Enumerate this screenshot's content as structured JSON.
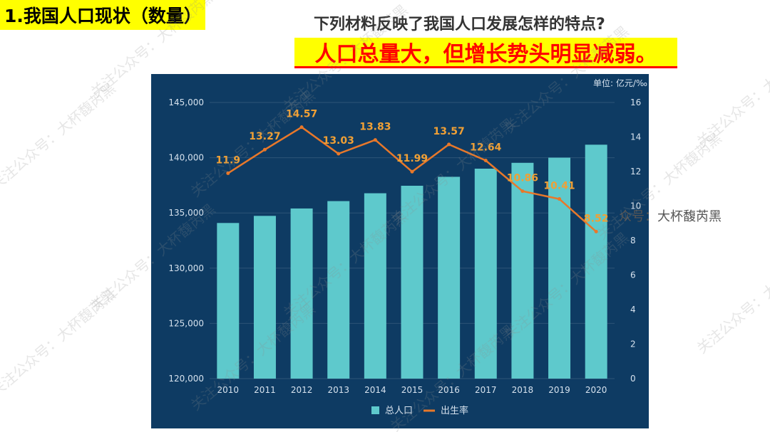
{
  "slide": {
    "heading": "1.我国人口现状（数量）",
    "question": "下列材料反映了我国人口发展怎样的特点?",
    "answer": "人口总量大，但增长势头明显减弱。",
    "watermark_side": "众号：大杯馥芮黑",
    "watermark_pattern": "关注公众号：大杯馥芮黑"
  },
  "colors": {
    "heading_bg": "#ffff00",
    "answer_text": "#ff0000",
    "panel_bg": "#0e3b63",
    "bar": "#5ec9cc",
    "line": "#e8782a",
    "line_label": "#f0a035"
  },
  "chart_data": {
    "type": "bar",
    "unit_label": "单位: 亿元/‰",
    "categories": [
      "2010",
      "2011",
      "2012",
      "2013",
      "2014",
      "2015",
      "2016",
      "2017",
      "2018",
      "2019",
      "2020"
    ],
    "left_axis": {
      "min": 120000,
      "max": 145000,
      "ticks": [
        "120,000",
        "125,000",
        "130,000",
        "135,000",
        "140,000",
        "145,000"
      ]
    },
    "right_axis": {
      "min": 0,
      "max": 16,
      "ticks": [
        "0",
        "2",
        "4",
        "6",
        "8",
        "10",
        "12",
        "14",
        "16"
      ]
    },
    "series": [
      {
        "name": "总人口",
        "kind": "bar",
        "axis": "left",
        "values": [
          134091,
          134735,
          135404,
          136072,
          136782,
          137462,
          138271,
          139008,
          139538,
          140005,
          141178
        ]
      },
      {
        "name": "出生率",
        "kind": "line",
        "axis": "right",
        "values": [
          11.9,
          13.27,
          14.57,
          13.03,
          13.83,
          11.99,
          13.57,
          12.64,
          10.86,
          10.41,
          8.52
        ],
        "labels": [
          "11.9",
          "13.27",
          "14.57",
          "13.03",
          "13.83",
          "11.99",
          "13.57",
          "12.64",
          "10.86",
          "10.41",
          "8.52"
        ]
      }
    ],
    "legend": {
      "placement": "bottom-center"
    }
  }
}
